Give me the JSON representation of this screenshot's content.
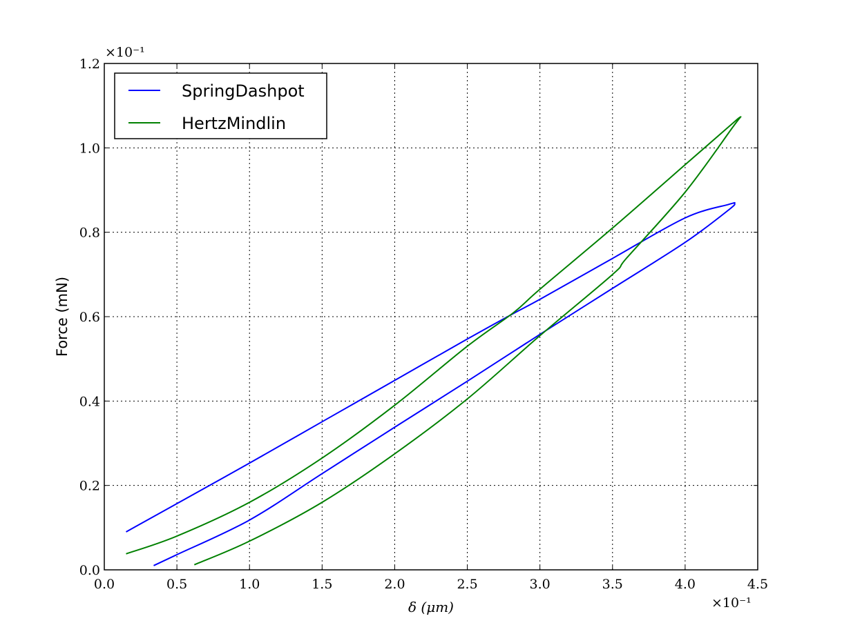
{
  "chart_data": {
    "type": "line",
    "xlabel": "δ (μm)",
    "ylabel": "Force (mN)",
    "x_multiplier": "×10⁻¹",
    "y_multiplier": "×10⁻¹",
    "xlim": [
      0.0,
      4.5
    ],
    "ylim": [
      0.0,
      1.2
    ],
    "xticks": [
      "0.0",
      "0.5",
      "1.0",
      "1.5",
      "2.0",
      "2.5",
      "3.0",
      "3.5",
      "4.0",
      "4.5"
    ],
    "yticks": [
      "0.0",
      "0.2",
      "0.4",
      "0.6",
      "0.8",
      "1.0",
      "1.2"
    ],
    "grid": true,
    "legend_position": "top-left",
    "series": [
      {
        "name": "SpringDashpot",
        "color": "#0000ff",
        "x": [
          0.15,
          0.5,
          1.0,
          1.5,
          2.0,
          2.5,
          2.82,
          3.0,
          3.5,
          4.0,
          4.3,
          4.34,
          4.3,
          4.0,
          3.5,
          3.0,
          2.5,
          2.0,
          1.5,
          1.0,
          0.5,
          0.34
        ],
        "y": [
          0.09,
          0.157,
          0.253,
          0.351,
          0.449,
          0.547,
          0.608,
          0.641,
          0.738,
          0.834,
          0.866,
          0.868,
          0.853,
          0.776,
          0.667,
          0.558,
          0.447,
          0.338,
          0.228,
          0.118,
          0.036,
          0.01
        ]
      },
      {
        "name": "HertzMindlin",
        "color": "#008000",
        "x": [
          0.15,
          0.5,
          1.0,
          1.5,
          2.0,
          2.5,
          2.82,
          3.0,
          3.5,
          4.0,
          4.3,
          4.38,
          4.33,
          4.0,
          3.6,
          3.5,
          3.0,
          2.5,
          2.0,
          1.5,
          1.0,
          0.62
        ],
        "y": [
          0.038,
          0.08,
          0.16,
          0.265,
          0.39,
          0.53,
          0.61,
          0.665,
          0.81,
          0.96,
          1.05,
          1.073,
          1.05,
          0.895,
          0.74,
          0.7,
          0.555,
          0.405,
          0.275,
          0.16,
          0.068,
          0.012
        ]
      }
    ]
  }
}
